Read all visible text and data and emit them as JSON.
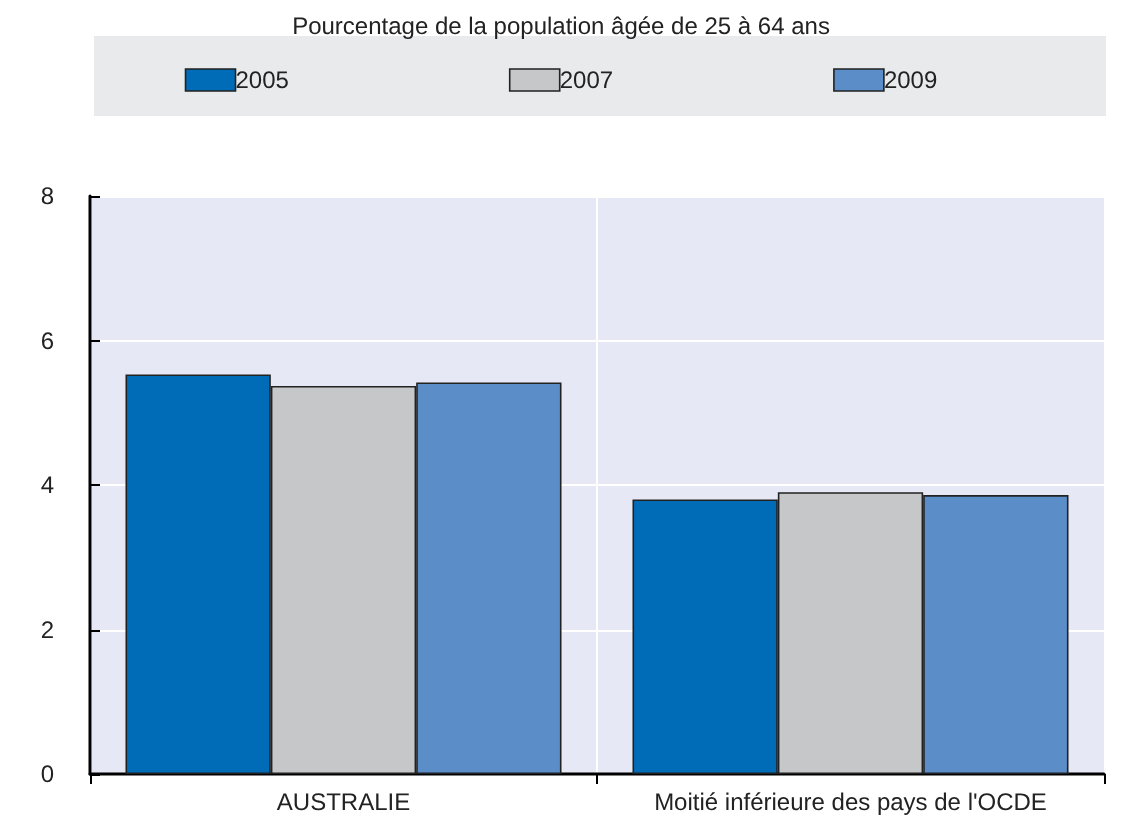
{
  "chart_data": {
    "type": "bar",
    "subtitle": "Pourcentage de la population âgée de 25 à 64 ans",
    "categories": [
      "AUSTRALIE",
      "Moitié inférieure des pays de l'OCDE"
    ],
    "series": [
      {
        "name": "2005",
        "color": "#006bb6",
        "values": [
          5.53,
          3.8
        ]
      },
      {
        "name": "2007",
        "color": "#c6c7c9",
        "values": [
          5.37,
          3.9
        ]
      },
      {
        "name": "2009",
        "color": "#5b8dc9",
        "values": [
          5.42,
          3.86
        ]
      }
    ],
    "ylim": [
      0,
      8
    ],
    "yticks": [
      0,
      2,
      4,
      6,
      8
    ],
    "grid": true,
    "legend": "top"
  }
}
